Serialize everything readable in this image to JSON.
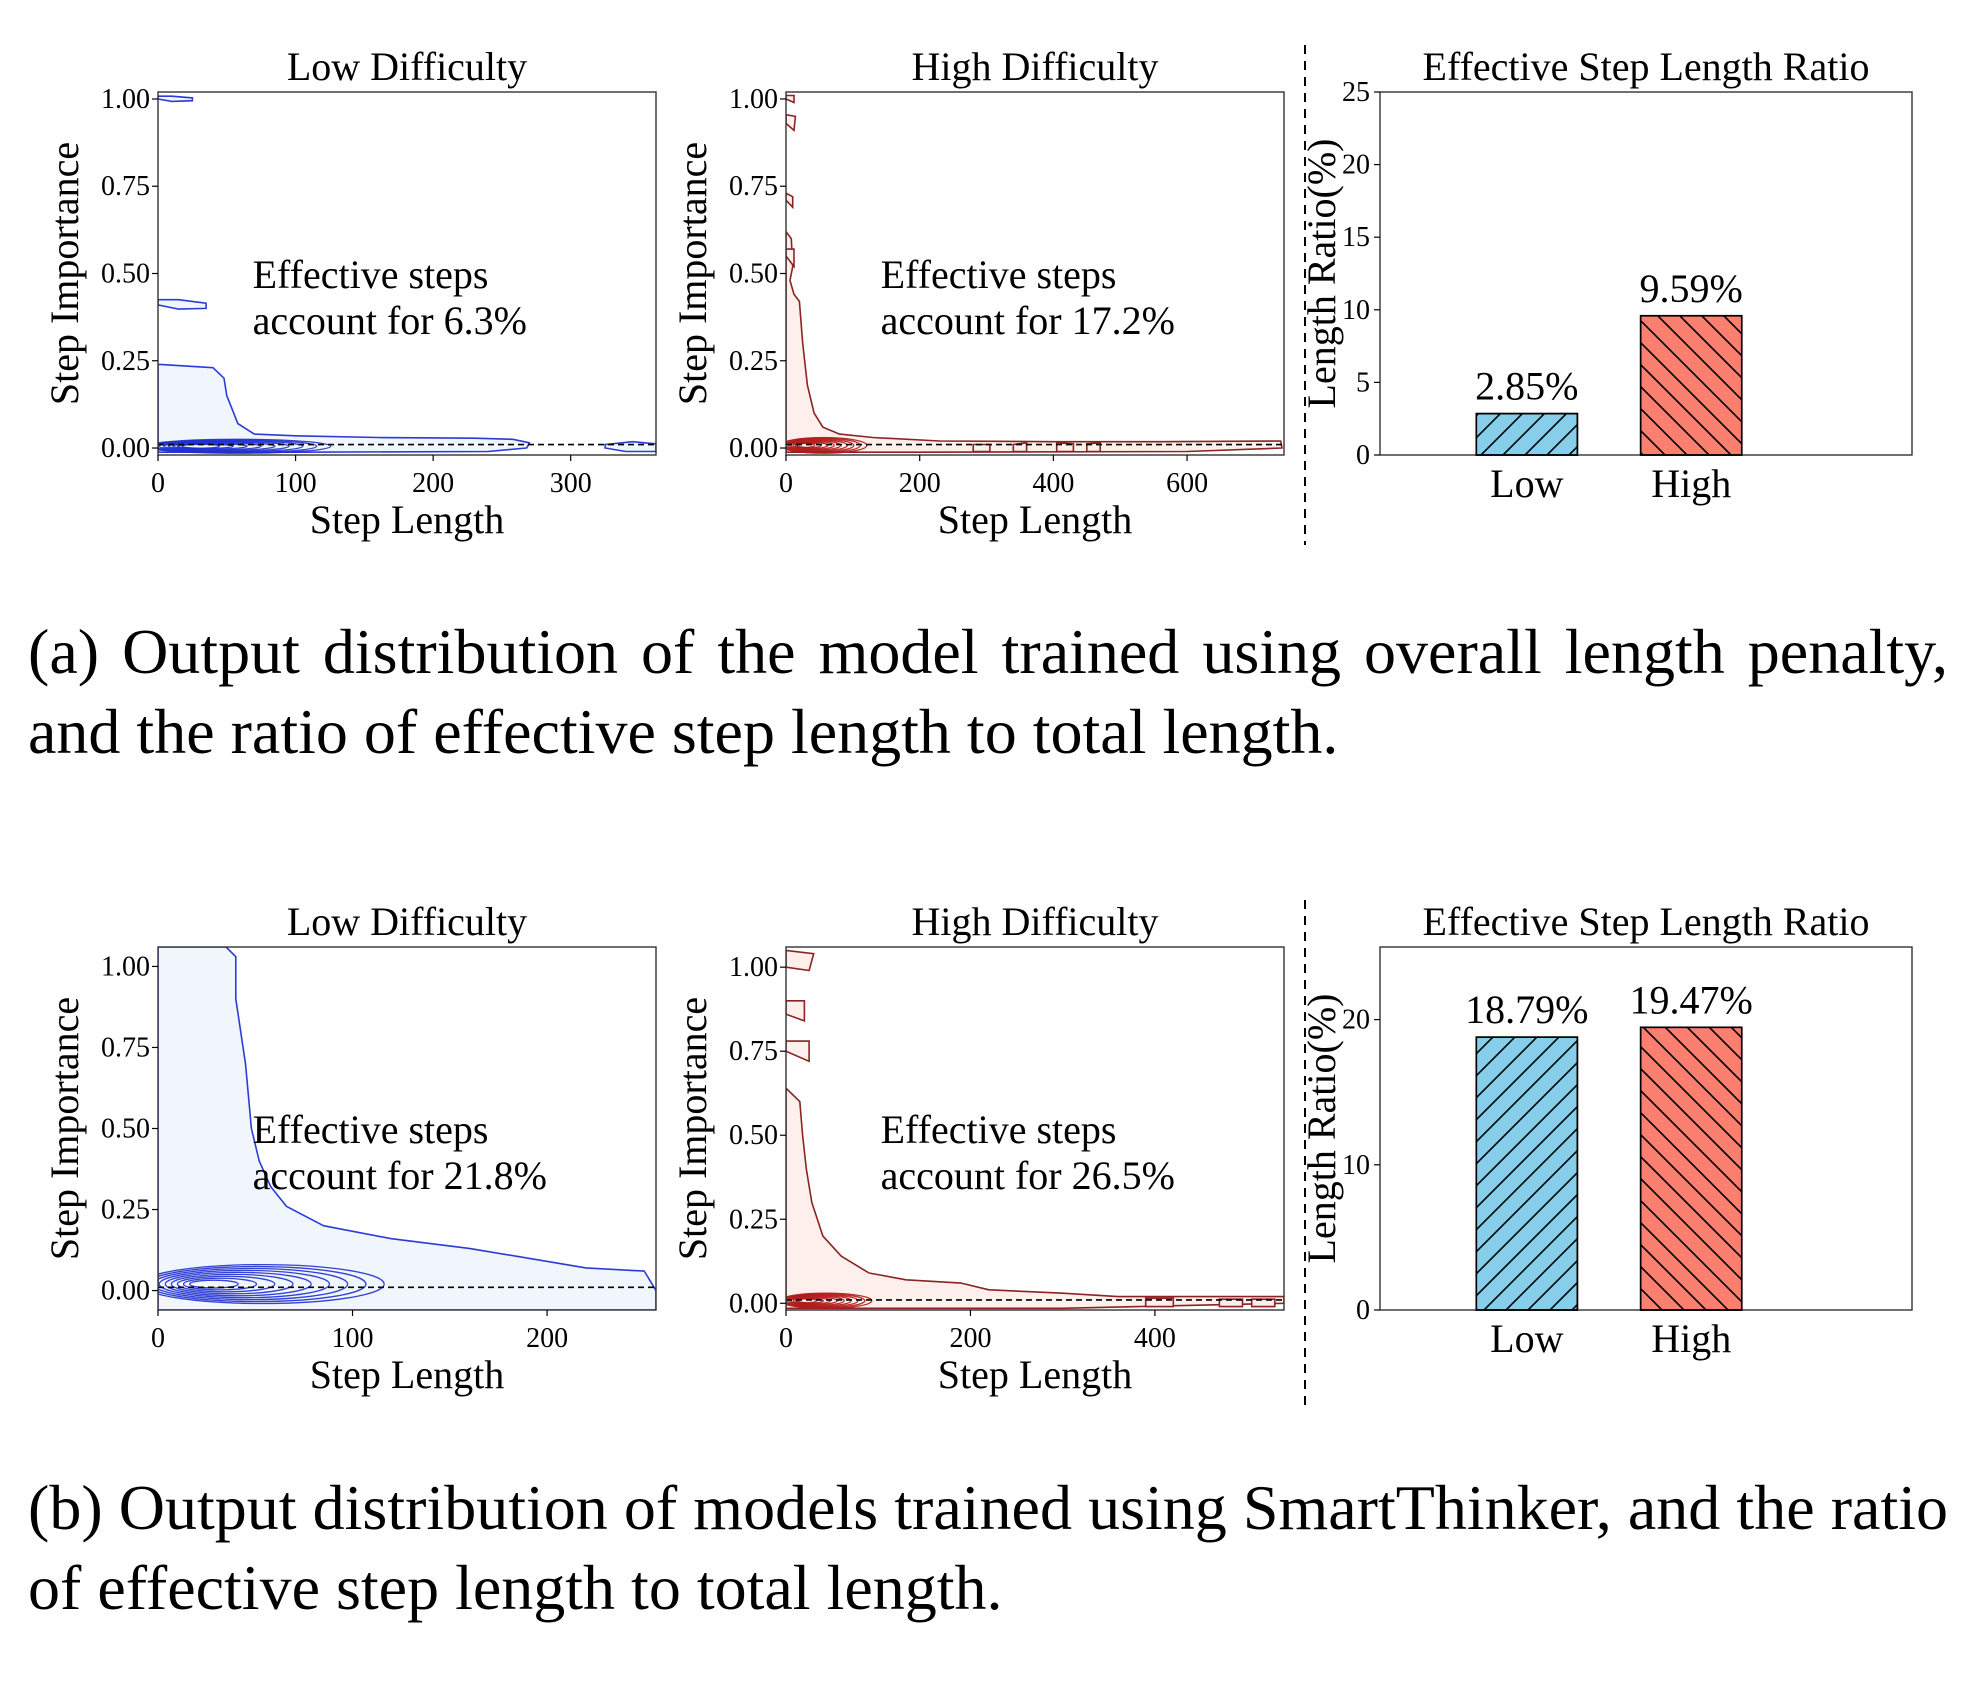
{
  "colors": {
    "low_fill": "#f1f6fc",
    "low_line": "#2b3bd6",
    "low_dense": "#1f2fd0",
    "high_fill": "#fdf0ec",
    "high_line": "#8b2323",
    "high_dense": "#b01818",
    "bar_low": "#87ceeb",
    "bar_high": "#fa7f6f"
  },
  "rows": [
    {
      "id": "a",
      "caption": "(a) Output distribution of the model trained using overall length penalty, and the ratio of effective step length to total length."
    },
    {
      "id": "b",
      "caption": "(b) Output distribution of models trained using SmartThinker, and the ratio of effective step length to total length."
    }
  ],
  "chart_data": [
    {
      "id": "a-low",
      "type": "contour",
      "color": "blue",
      "title": "Low Difficulty",
      "xlabel": "Step Length",
      "ylabel": "Step Importance",
      "xlim": [
        0,
        362
      ],
      "ylim": [
        -0.02,
        1.02
      ],
      "xticks": [
        0,
        100,
        200,
        300
      ],
      "yticks": [
        0.0,
        0.25,
        0.5,
        0.75,
        1.0
      ],
      "ytick_labels": [
        "0.00",
        "0.25",
        "0.50",
        "0.75",
        "1.00"
      ],
      "annotation": [
        "Effective steps",
        "account for  6.3%"
      ],
      "threshold": 0.01,
      "outer_contour": [
        [
          0,
          0.24
        ],
        [
          40,
          0.23
        ],
        [
          48,
          0.2
        ],
        [
          50,
          0.15
        ],
        [
          55,
          0.1
        ],
        [
          58,
          0.07
        ],
        [
          70,
          0.04
        ],
        [
          100,
          0.035
        ],
        [
          160,
          0.03
        ],
        [
          230,
          0.028
        ],
        [
          258,
          0.025
        ],
        [
          270,
          0.015
        ],
        [
          268,
          0.0
        ],
        [
          240,
          -0.01
        ],
        [
          100,
          -0.012
        ],
        [
          0,
          -0.012
        ]
      ],
      "islands": [
        [
          [
            0,
            1.0
          ],
          [
            10,
            0.993
          ],
          [
            25,
            0.995
          ],
          [
            25,
            1.003
          ],
          [
            10,
            1.008
          ],
          [
            0,
            1.008
          ]
        ],
        [
          [
            0,
            0.41
          ],
          [
            15,
            0.398
          ],
          [
            35,
            0.4
          ],
          [
            35,
            0.415
          ],
          [
            15,
            0.425
          ],
          [
            0,
            0.425
          ]
        ],
        [
          [
            325,
            0.01
          ],
          [
            345,
            0.018
          ],
          [
            362,
            0.012
          ],
          [
            362,
            -0.01
          ],
          [
            340,
            -0.01
          ],
          [
            325,
            0.0
          ]
        ]
      ],
      "dense_core": {
        "x": [
          0,
          135
        ],
        "y": [
          -0.015,
          0.025
        ]
      }
    },
    {
      "id": "a-high",
      "type": "contour",
      "color": "red",
      "title": "High Difficulty",
      "xlabel": "Step Length",
      "ylabel": "Step Importance",
      "xlim": [
        0,
        745
      ],
      "ylim": [
        -0.02,
        1.02
      ],
      "xticks": [
        0,
        200,
        400,
        600
      ],
      "yticks": [
        0.0,
        0.25,
        0.5,
        0.75,
        1.0
      ],
      "ytick_labels": [
        "0.00",
        "0.25",
        "0.50",
        "0.75",
        "1.00"
      ],
      "annotation": [
        "Effective steps",
        "account for 17.2%"
      ],
      "threshold": 0.01,
      "outer_contour": [
        [
          0,
          0.62
        ],
        [
          8,
          0.6
        ],
        [
          10,
          0.52
        ],
        [
          6,
          0.48
        ],
        [
          12,
          0.44
        ],
        [
          20,
          0.42
        ],
        [
          25,
          0.3
        ],
        [
          32,
          0.18
        ],
        [
          42,
          0.1
        ],
        [
          55,
          0.06
        ],
        [
          80,
          0.04
        ],
        [
          130,
          0.03
        ],
        [
          230,
          0.02
        ],
        [
          400,
          0.018
        ],
        [
          560,
          0.018
        ],
        [
          740,
          0.02
        ],
        [
          742,
          0.0
        ],
        [
          600,
          -0.01
        ],
        [
          200,
          -0.012
        ],
        [
          0,
          -0.012
        ]
      ],
      "islands": [
        [
          [
            0,
            1.0
          ],
          [
            12,
            0.99
          ],
          [
            12,
            1.01
          ],
          [
            0,
            1.01
          ]
        ],
        [
          [
            0,
            0.93
          ],
          [
            12,
            0.91
          ],
          [
            14,
            0.95
          ],
          [
            0,
            0.955
          ]
        ],
        [
          [
            0,
            0.71
          ],
          [
            10,
            0.69
          ],
          [
            10,
            0.72
          ],
          [
            0,
            0.73
          ]
        ],
        [
          [
            0,
            0.55
          ],
          [
            12,
            0.52
          ],
          [
            12,
            0.57
          ],
          [
            0,
            0.57
          ]
        ],
        [
          [
            280,
            0.01
          ],
          [
            305,
            0.01
          ],
          [
            305,
            -0.01
          ],
          [
            280,
            -0.01
          ]
        ],
        [
          [
            340,
            0.01
          ],
          [
            360,
            0.015
          ],
          [
            360,
            -0.01
          ],
          [
            340,
            -0.01
          ]
        ],
        [
          [
            405,
            0.015
          ],
          [
            430,
            0.012
          ],
          [
            430,
            -0.01
          ],
          [
            405,
            -0.01
          ]
        ],
        [
          [
            450,
            0.012
          ],
          [
            470,
            0.015
          ],
          [
            470,
            -0.01
          ],
          [
            450,
            -0.01
          ]
        ]
      ],
      "dense_core": {
        "x": [
          0,
          130
        ],
        "y": [
          -0.015,
          0.03
        ]
      }
    },
    {
      "id": "a-ratio",
      "type": "bar",
      "title": "Effective Step Length Ratio",
      "ylabel": "Length Ratio(%)",
      "categories": [
        "Low",
        "High"
      ],
      "values": [
        2.85,
        9.59
      ],
      "value_labels": [
        "2.85%",
        "9.59%"
      ],
      "ylim": [
        0,
        25
      ],
      "yticks": [
        0,
        5,
        10,
        15,
        20,
        25
      ],
      "ytick_labels": [
        "0",
        "5",
        "10",
        "15",
        "20",
        "25"
      ],
      "hatch": [
        "/",
        "\\"
      ]
    },
    {
      "id": "b-low",
      "type": "contour",
      "color": "blue",
      "title": "Low Difficulty",
      "xlabel": "Step Length",
      "ylabel": "Step Importance",
      "xlim": [
        0,
        256
      ],
      "ylim": [
        -0.06,
        1.06
      ],
      "xticks": [
        0,
        100,
        200
      ],
      "yticks": [
        0.0,
        0.25,
        0.5,
        0.75,
        1.0
      ],
      "ytick_labels": [
        "0.00",
        "0.25",
        "0.50",
        "0.75",
        "1.00"
      ],
      "annotation": [
        "Effective steps",
        "account for  21.8%"
      ],
      "threshold": 0.01,
      "outer_contour": [
        [
          0,
          1.06
        ],
        [
          35,
          1.06
        ],
        [
          40,
          1.03
        ],
        [
          40,
          0.9
        ],
        [
          45,
          0.7
        ],
        [
          48,
          0.5
        ],
        [
          52,
          0.4
        ],
        [
          58,
          0.32
        ],
        [
          66,
          0.26
        ],
        [
          85,
          0.2
        ],
        [
          120,
          0.16
        ],
        [
          160,
          0.13
        ],
        [
          220,
          0.07
        ],
        [
          250,
          0.06
        ],
        [
          256,
          0.0
        ],
        [
          256,
          -0.06
        ],
        [
          0,
          -0.06
        ]
      ],
      "islands": [],
      "dense_core": {
        "x": [
          0,
          125
        ],
        "y": [
          -0.04,
          0.08
        ]
      }
    },
    {
      "id": "b-high",
      "type": "contour",
      "color": "red",
      "title": "High Difficulty",
      "xlabel": "Step Length",
      "ylabel": "Step Importance",
      "xlim": [
        0,
        540
      ],
      "ylim": [
        -0.02,
        1.06
      ],
      "xticks": [
        0,
        200,
        400
      ],
      "yticks": [
        0.0,
        0.25,
        0.5,
        0.75,
        1.0
      ],
      "ytick_labels": [
        "0.00",
        "0.25",
        "0.50",
        "0.75",
        "1.00"
      ],
      "annotation": [
        "Effective steps",
        "account for 26.5%"
      ],
      "threshold": 0.01,
      "outer_contour": [
        [
          0,
          0.64
        ],
        [
          15,
          0.6
        ],
        [
          18,
          0.5
        ],
        [
          22,
          0.4
        ],
        [
          28,
          0.3
        ],
        [
          40,
          0.2
        ],
        [
          60,
          0.14
        ],
        [
          90,
          0.09
        ],
        [
          130,
          0.07
        ],
        [
          190,
          0.06
        ],
        [
          220,
          0.04
        ],
        [
          300,
          0.03
        ],
        [
          360,
          0.02
        ],
        [
          540,
          0.02
        ],
        [
          540,
          0.0
        ],
        [
          300,
          -0.015
        ],
        [
          0,
          -0.015
        ]
      ],
      "islands": [
        [
          [
            0,
            1.0
          ],
          [
            25,
            0.99
          ],
          [
            30,
            1.04
          ],
          [
            0,
            1.05
          ]
        ],
        [
          [
            0,
            0.86
          ],
          [
            20,
            0.84
          ],
          [
            20,
            0.9
          ],
          [
            0,
            0.9
          ]
        ],
        [
          [
            0,
            0.75
          ],
          [
            25,
            0.72
          ],
          [
            25,
            0.78
          ],
          [
            0,
            0.78
          ]
        ],
        [
          [
            390,
            0.015
          ],
          [
            420,
            0.015
          ],
          [
            420,
            -0.01
          ],
          [
            390,
            -0.01
          ]
        ],
        [
          [
            470,
            0.012
          ],
          [
            495,
            0.012
          ],
          [
            495,
            -0.01
          ],
          [
            470,
            -0.01
          ]
        ],
        [
          [
            505,
            0.012
          ],
          [
            530,
            0.012
          ],
          [
            530,
            -0.01
          ],
          [
            505,
            -0.01
          ]
        ]
      ],
      "dense_core": {
        "x": [
          0,
          100
        ],
        "y": [
          -0.015,
          0.03
        ]
      }
    },
    {
      "id": "b-ratio",
      "type": "bar",
      "title": "Effective Step Length Ratio",
      "ylabel": "Length Ratio(%)",
      "categories": [
        "Low",
        "High"
      ],
      "values": [
        18.79,
        19.47
      ],
      "value_labels": [
        "18.79%",
        "19.47%"
      ],
      "ylim": [
        0,
        25
      ],
      "yticks": [
        0,
        10,
        20
      ],
      "ytick_labels": [
        "0",
        "10",
        "20"
      ],
      "hatch": [
        "/",
        "\\"
      ]
    }
  ]
}
